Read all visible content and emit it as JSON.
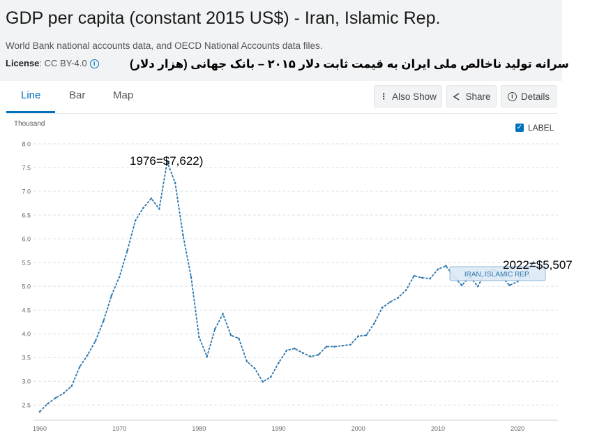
{
  "header": {
    "title": "GDP per capita (constant 2015 US$) - Iran, Islamic Rep.",
    "source": "World Bank national accounts data, and OECD National Accounts data files.",
    "license_label": "License",
    "license_value": ": CC BY-4.0",
    "persian_caption": "سرانه تولید ناخالص ملی ایران به قیمت ثابت دلار ۲۰۱۵ – بانک جهانی (هزار دلار)"
  },
  "tabs": [
    {
      "label": "Line",
      "active": true
    },
    {
      "label": "Bar",
      "active": false
    },
    {
      "label": "Map",
      "active": false
    }
  ],
  "toolbar": {
    "also_show": "Also Show",
    "share": "Share",
    "details": "Details",
    "label_toggle": "LABEL"
  },
  "colors": {
    "line": "#2e77ad",
    "accent": "#0071bc"
  },
  "chart_data": {
    "type": "line",
    "ylabel": "Thousand",
    "ylim": [
      2.4,
      8.0
    ],
    "yticks": [
      "2.5",
      "3.0",
      "3.5",
      "4.0",
      "4.5",
      "5.0",
      "5.5",
      "6.0",
      "6.5",
      "7.0",
      "7.5",
      "8.0"
    ],
    "xlim": [
      1960,
      2022
    ],
    "xticks": [
      "1960",
      "1970",
      "1980",
      "1990",
      "2000",
      "2010",
      "2020"
    ],
    "grid": true,
    "series": [
      {
        "name": "IRAN, ISLAMIC REP.",
        "x": [
          1960,
          1961,
          1962,
          1963,
          1964,
          1965,
          1966,
          1967,
          1968,
          1969,
          1970,
          1971,
          1972,
          1973,
          1974,
          1975,
          1976,
          1977,
          1978,
          1979,
          1980,
          1981,
          1982,
          1983,
          1984,
          1985,
          1986,
          1987,
          1988,
          1989,
          1990,
          1991,
          1992,
          1993,
          1994,
          1995,
          1996,
          1997,
          1998,
          1999,
          2000,
          2001,
          2002,
          2003,
          2004,
          2005,
          2006,
          2007,
          2008,
          2009,
          2010,
          2011,
          2012,
          2013,
          2014,
          2015,
          2016,
          2017,
          2018,
          2019,
          2020,
          2021,
          2022
        ],
        "values": [
          2.36,
          2.53,
          2.65,
          2.75,
          2.9,
          3.3,
          3.55,
          3.85,
          4.27,
          4.8,
          5.2,
          5.75,
          6.38,
          6.65,
          6.85,
          6.63,
          7.622,
          7.18,
          6.07,
          5.2,
          3.93,
          3.52,
          4.1,
          4.42,
          3.97,
          3.9,
          3.42,
          3.27,
          2.99,
          3.09,
          3.39,
          3.65,
          3.69,
          3.6,
          3.52,
          3.56,
          3.73,
          3.73,
          3.75,
          3.77,
          3.95,
          3.97,
          4.22,
          4.55,
          4.67,
          4.76,
          4.92,
          5.22,
          5.18,
          5.16,
          5.36,
          5.43,
          5.2,
          5.02,
          5.2,
          5.0,
          5.3,
          5.35,
          5.2,
          5.02,
          5.1,
          5.3,
          5.507
        ]
      }
    ],
    "annotations": [
      {
        "text": "1976=$7,622)",
        "x": 1976,
        "y": 7.622
      },
      {
        "text": "2022=$5,507",
        "x": 2022,
        "y": 5.507
      }
    ],
    "hover_label": "IRAN, ISLAMIC REP."
  }
}
